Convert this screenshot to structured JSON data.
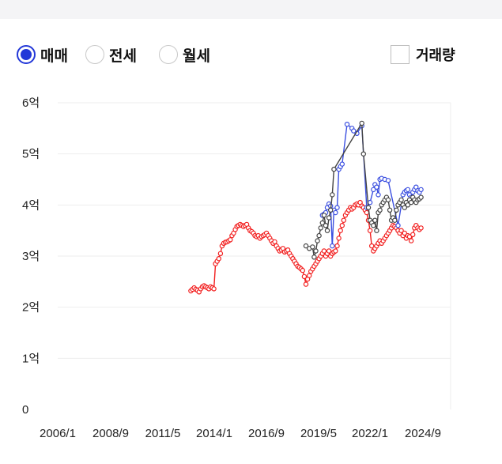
{
  "controls": {
    "options": [
      {
        "label": "매매",
        "selected": true
      },
      {
        "label": "전세",
        "selected": false
      },
      {
        "label": "월세",
        "selected": false
      }
    ],
    "volume_checkbox": {
      "label": "거래량",
      "checked": false
    }
  },
  "colors": {
    "accent": "#2237d8",
    "trade": "#f21f1f",
    "jeonse_blue": "#3b4fe0",
    "jeonse_dark": "#444444",
    "grid": "#eeeeee"
  },
  "chart_data": {
    "type": "line",
    "x_tick_labels": [
      "2006/1",
      "2008/9",
      "2011/5",
      "2014/1",
      "2016/9",
      "2019/5",
      "2022/1",
      "2024/9"
    ],
    "y_tick_labels": [
      "0",
      "1억",
      "2억",
      "3억",
      "4억",
      "5억",
      "6억"
    ],
    "ylim": [
      0,
      6
    ],
    "xlim": [
      "2006-01",
      "2025-12"
    ],
    "grid": true,
    "series": [
      {
        "color": "#f21f1f",
        "points": [
          [
            "2012-10",
            2.32
          ],
          [
            "2012-11",
            2.35
          ],
          [
            "2012-12",
            2.38
          ],
          [
            "2013-01",
            2.35
          ],
          [
            "2013-02",
            2.33
          ],
          [
            "2013-03",
            2.3
          ],
          [
            "2013-04",
            2.36
          ],
          [
            "2013-05",
            2.4
          ],
          [
            "2013-06",
            2.42
          ],
          [
            "2013-07",
            2.4
          ],
          [
            "2013-08",
            2.38
          ],
          [
            "2013-09",
            2.36
          ],
          [
            "2013-10",
            2.4
          ],
          [
            "2013-11",
            2.38
          ],
          [
            "2013-12",
            2.36
          ],
          [
            "2014-01",
            2.85
          ],
          [
            "2014-02",
            2.9
          ],
          [
            "2014-03",
            2.95
          ],
          [
            "2014-04",
            3.05
          ],
          [
            "2014-05",
            3.2
          ],
          [
            "2014-06",
            3.25
          ],
          [
            "2014-07",
            3.27
          ],
          [
            "2014-08",
            3.28
          ],
          [
            "2014-09",
            3.3
          ],
          [
            "2014-10",
            3.32
          ],
          [
            "2014-11",
            3.4
          ],
          [
            "2014-12",
            3.45
          ],
          [
            "2015-01",
            3.52
          ],
          [
            "2015-02",
            3.58
          ],
          [
            "2015-03",
            3.6
          ],
          [
            "2015-04",
            3.62
          ],
          [
            "2015-05",
            3.6
          ],
          [
            "2015-06",
            3.58
          ],
          [
            "2015-07",
            3.6
          ],
          [
            "2015-08",
            3.62
          ],
          [
            "2015-09",
            3.55
          ],
          [
            "2015-10",
            3.5
          ],
          [
            "2015-11",
            3.48
          ],
          [
            "2015-12",
            3.45
          ],
          [
            "2016-01",
            3.4
          ],
          [
            "2016-02",
            3.38
          ],
          [
            "2016-03",
            3.4
          ],
          [
            "2016-04",
            3.35
          ],
          [
            "2016-05",
            3.38
          ],
          [
            "2016-06",
            3.4
          ],
          [
            "2016-07",
            3.42
          ],
          [
            "2016-08",
            3.45
          ],
          [
            "2016-09",
            3.4
          ],
          [
            "2016-10",
            3.35
          ],
          [
            "2016-11",
            3.3
          ],
          [
            "2016-12",
            3.25
          ],
          [
            "2017-01",
            3.28
          ],
          [
            "2017-02",
            3.2
          ],
          [
            "2017-03",
            3.15
          ],
          [
            "2017-04",
            3.1
          ],
          [
            "2017-05",
            3.12
          ],
          [
            "2017-06",
            3.15
          ],
          [
            "2017-07",
            3.08
          ],
          [
            "2017-08",
            3.1
          ],
          [
            "2017-09",
            3.12
          ],
          [
            "2017-10",
            3.05
          ],
          [
            "2017-11",
            3.0
          ],
          [
            "2017-12",
            2.95
          ],
          [
            "2018-01",
            2.9
          ],
          [
            "2018-02",
            2.85
          ],
          [
            "2018-03",
            2.8
          ],
          [
            "2018-04",
            2.78
          ],
          [
            "2018-05",
            2.75
          ],
          [
            "2018-06",
            2.72
          ],
          [
            "2018-07",
            2.6
          ],
          [
            "2018-08",
            2.45
          ],
          [
            "2018-09",
            2.55
          ],
          [
            "2018-10",
            2.62
          ],
          [
            "2018-11",
            2.7
          ],
          [
            "2018-12",
            2.75
          ],
          [
            "2019-01",
            2.8
          ],
          [
            "2019-02",
            2.85
          ],
          [
            "2019-03",
            2.9
          ],
          [
            "2019-04",
            2.95
          ],
          [
            "2019-05",
            3.0
          ],
          [
            "2019-06",
            3.05
          ],
          [
            "2019-07",
            3.1
          ],
          [
            "2019-08",
            3.0
          ],
          [
            "2019-09",
            3.05
          ],
          [
            "2019-10",
            3.1
          ],
          [
            "2019-11",
            3.0
          ],
          [
            "2019-12",
            3.05
          ],
          [
            "2020-01",
            3.08
          ],
          [
            "2020-02",
            3.1
          ],
          [
            "2020-03",
            3.2
          ],
          [
            "2020-04",
            3.35
          ],
          [
            "2020-05",
            3.5
          ],
          [
            "2020-06",
            3.6
          ],
          [
            "2020-07",
            3.7
          ],
          [
            "2020-08",
            3.8
          ],
          [
            "2020-09",
            3.85
          ],
          [
            "2020-10",
            3.9
          ],
          [
            "2020-11",
            3.95
          ],
          [
            "2020-12",
            3.92
          ],
          [
            "2021-01",
            3.95
          ],
          [
            "2021-02",
            4.0
          ],
          [
            "2021-03",
            4.02
          ],
          [
            "2021-04",
            4.0
          ],
          [
            "2021-05",
            4.05
          ],
          [
            "2021-06",
            3.98
          ],
          [
            "2021-07",
            3.95
          ],
          [
            "2021-08",
            3.9
          ],
          [
            "2021-09",
            3.85
          ],
          [
            "2021-10",
            3.7
          ],
          [
            "2021-11",
            3.5
          ],
          [
            "2021-12",
            3.2
          ],
          [
            "2022-01",
            3.1
          ],
          [
            "2022-02",
            3.15
          ],
          [
            "2022-03",
            3.2
          ],
          [
            "2022-04",
            3.25
          ],
          [
            "2022-05",
            3.3
          ],
          [
            "2022-06",
            3.25
          ],
          [
            "2022-07",
            3.3
          ],
          [
            "2022-08",
            3.35
          ],
          [
            "2022-09",
            3.4
          ],
          [
            "2022-10",
            3.45
          ],
          [
            "2022-11",
            3.5
          ],
          [
            "2022-12",
            3.55
          ],
          [
            "2023-01",
            3.6
          ],
          [
            "2023-02",
            3.58
          ],
          [
            "2023-03",
            3.55
          ],
          [
            "2023-04",
            3.5
          ],
          [
            "2023-05",
            3.45
          ],
          [
            "2023-06",
            3.5
          ],
          [
            "2023-07",
            3.4
          ],
          [
            "2023-08",
            3.45
          ],
          [
            "2023-09",
            3.35
          ],
          [
            "2023-10",
            3.4
          ],
          [
            "2023-11",
            3.38
          ],
          [
            "2023-12",
            3.3
          ],
          [
            "2024-01",
            3.42
          ],
          [
            "2024-02",
            3.55
          ],
          [
            "2024-03",
            3.6
          ],
          [
            "2024-04",
            3.55
          ],
          [
            "2024-05",
            3.52
          ],
          [
            "2024-06",
            3.55
          ]
        ]
      },
      {
        "color": "#3b4fe0",
        "points": [
          [
            "2019-06",
            3.8
          ],
          [
            "2019-07",
            3.82
          ],
          [
            "2019-08",
            3.85
          ],
          [
            "2019-09",
            3.95
          ],
          [
            "2019-10",
            4.02
          ],
          [
            "2019-11",
            3.98
          ],
          [
            "2019-12",
            3.2
          ],
          [
            "2020-01",
            3.9
          ],
          [
            "2020-02",
            3.85
          ],
          [
            "2020-03",
            3.95
          ],
          [
            "2020-04",
            4.7
          ],
          [
            "2020-05",
            4.75
          ],
          [
            "2020-06",
            4.8
          ],
          [
            "2020-09",
            5.58
          ],
          [
            "2020-12",
            5.5
          ],
          [
            "2021-01",
            5.45
          ],
          [
            "2021-03",
            5.4
          ],
          [
            "2021-06",
            5.55
          ],
          [
            "2021-09",
            3.95
          ],
          [
            "2021-11",
            4.05
          ],
          [
            "2022-01",
            4.3
          ],
          [
            "2022-02",
            4.4
          ],
          [
            "2022-03",
            4.35
          ],
          [
            "2022-04",
            4.2
          ],
          [
            "2022-05",
            4.5
          ],
          [
            "2022-06",
            4.52
          ],
          [
            "2022-08",
            4.5
          ],
          [
            "2022-10",
            4.48
          ],
          [
            "2023-04",
            3.6
          ],
          [
            "2023-07",
            4.2
          ],
          [
            "2023-08",
            4.25
          ],
          [
            "2023-09",
            4.28
          ],
          [
            "2023-10",
            4.3
          ],
          [
            "2023-11",
            4.2
          ],
          [
            "2023-12",
            4.15
          ],
          [
            "2024-01",
            4.25
          ],
          [
            "2024-02",
            4.3
          ],
          [
            "2024-03",
            4.35
          ],
          [
            "2024-04",
            4.28
          ],
          [
            "2024-05",
            4.25
          ],
          [
            "2024-06",
            4.3
          ]
        ]
      },
      {
        "color": "#444444",
        "points": [
          [
            "2018-08",
            3.2
          ],
          [
            "2018-10",
            3.15
          ],
          [
            "2018-12",
            3.18
          ],
          [
            "2019-01",
            2.98
          ],
          [
            "2019-02",
            3.1
          ],
          [
            "2019-03",
            3.3
          ],
          [
            "2019-04",
            3.4
          ],
          [
            "2019-05",
            3.55
          ],
          [
            "2019-06",
            3.65
          ],
          [
            "2019-07",
            3.8
          ],
          [
            "2019-08",
            3.6
          ],
          [
            "2019-09",
            3.5
          ],
          [
            "2019-10",
            3.75
          ],
          [
            "2019-11",
            3.9
          ],
          [
            "2019-12",
            4.2
          ],
          [
            "2020-01",
            4.7
          ],
          [
            "2021-06",
            5.6
          ],
          [
            "2021-07",
            5.0
          ],
          [
            "2021-10",
            3.95
          ],
          [
            "2021-11",
            3.7
          ],
          [
            "2021-12",
            3.65
          ],
          [
            "2022-01",
            3.6
          ],
          [
            "2022-02",
            3.7
          ],
          [
            "2022-03",
            3.5
          ],
          [
            "2022-04",
            3.85
          ],
          [
            "2022-05",
            3.9
          ],
          [
            "2022-06",
            4.0
          ],
          [
            "2022-07",
            4.05
          ],
          [
            "2022-08",
            4.1
          ],
          [
            "2022-09",
            4.15
          ],
          [
            "2022-10",
            4.1
          ],
          [
            "2022-11",
            3.9
          ],
          [
            "2022-12",
            3.7
          ],
          [
            "2023-01",
            3.75
          ],
          [
            "2023-02",
            3.7
          ],
          [
            "2023-03",
            3.9
          ],
          [
            "2023-04",
            4.0
          ],
          [
            "2023-05",
            4.05
          ],
          [
            "2023-06",
            4.1
          ],
          [
            "2023-07",
            4.0
          ],
          [
            "2023-08",
            3.95
          ],
          [
            "2023-09",
            4.05
          ],
          [
            "2023-10",
            4.0
          ],
          [
            "2023-11",
            4.1
          ],
          [
            "2023-12",
            4.05
          ],
          [
            "2024-01",
            4.15
          ],
          [
            "2024-02",
            4.1
          ],
          [
            "2024-03",
            4.05
          ],
          [
            "2024-04",
            4.1
          ],
          [
            "2024-05",
            4.12
          ],
          [
            "2024-06",
            4.15
          ]
        ]
      }
    ]
  }
}
